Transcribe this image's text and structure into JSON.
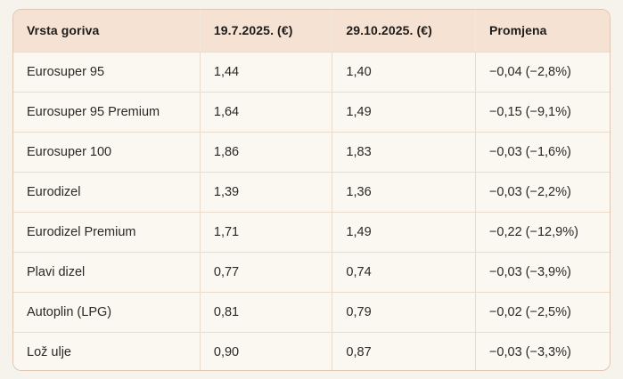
{
  "colors": {
    "page_bg": "#f6f2ec",
    "header_bg": "#f6e2d3",
    "row_bg": "#fbf8f2",
    "border_outer": "#ddc6b4",
    "border_inner": "#eadccd",
    "header_text": "#1e1b18",
    "body_text": "#2b2723"
  },
  "table": {
    "columns": [
      "Vrsta goriva",
      "19.7.2025. (€)",
      "29.10.2025. (€)",
      "Promjena"
    ],
    "rows": [
      [
        "Eurosuper 95",
        "1,44",
        "1,40",
        "−0,04 (−2,8%)"
      ],
      [
        "Eurosuper 95 Premium",
        "1,64",
        "1,49",
        "−0,15 (−9,1%)"
      ],
      [
        "Eurosuper 100",
        "1,86",
        "1,83",
        "−0,03 (−1,6%)"
      ],
      [
        "Eurodizel",
        "1,39",
        "1,36",
        "−0,03 (−2,2%)"
      ],
      [
        "Eurodizel Premium",
        "1,71",
        "1,49",
        "−0,22 (−12,9%)"
      ],
      [
        "Plavi dizel",
        "0,77",
        "0,74",
        "−0,03 (−3,9%)"
      ],
      [
        "Autoplin (LPG)",
        "0,81",
        "0,79",
        "−0,02 (−2,5%)"
      ],
      [
        "Lož ulje",
        "0,90",
        "0,87",
        "−0,03 (−3,3%)"
      ]
    ]
  },
  "chart_data": {
    "type": "table",
    "title": "",
    "columns": [
      "Vrsta goriva",
      "19.7.2025. (€)",
      "29.10.2025. (€)",
      "Promjena"
    ],
    "rows": [
      {
        "fuel": "Eurosuper 95",
        "price_2025_07_19": 1.44,
        "price_2025_10_29": 1.4,
        "change_abs": -0.04,
        "change_pct": "-2,8%"
      },
      {
        "fuel": "Eurosuper 95 Premium",
        "price_2025_07_19": 1.64,
        "price_2025_10_29": 1.49,
        "change_abs": -0.15,
        "change_pct": "-9,1%"
      },
      {
        "fuel": "Eurosuper 100",
        "price_2025_07_19": 1.86,
        "price_2025_10_29": 1.83,
        "change_abs": -0.03,
        "change_pct": "-1,6%"
      },
      {
        "fuel": "Eurodizel",
        "price_2025_07_19": 1.39,
        "price_2025_10_29": 1.36,
        "change_abs": -0.03,
        "change_pct": "-2,2%"
      },
      {
        "fuel": "Eurodizel Premium",
        "price_2025_07_19": 1.71,
        "price_2025_10_29": 1.49,
        "change_abs": -0.22,
        "change_pct": "-12,9%"
      },
      {
        "fuel": "Plavi dizel",
        "price_2025_07_19": 0.77,
        "price_2025_10_29": 0.74,
        "change_abs": -0.03,
        "change_pct": "-3,9%"
      },
      {
        "fuel": "Autoplin (LPG)",
        "price_2025_07_19": 0.81,
        "price_2025_10_29": 0.79,
        "change_abs": -0.02,
        "change_pct": "-2,5%"
      },
      {
        "fuel": "Lož ulje",
        "price_2025_07_19": 0.9,
        "price_2025_10_29": 0.87,
        "change_abs": -0.03,
        "change_pct": "-3,3%"
      }
    ]
  }
}
